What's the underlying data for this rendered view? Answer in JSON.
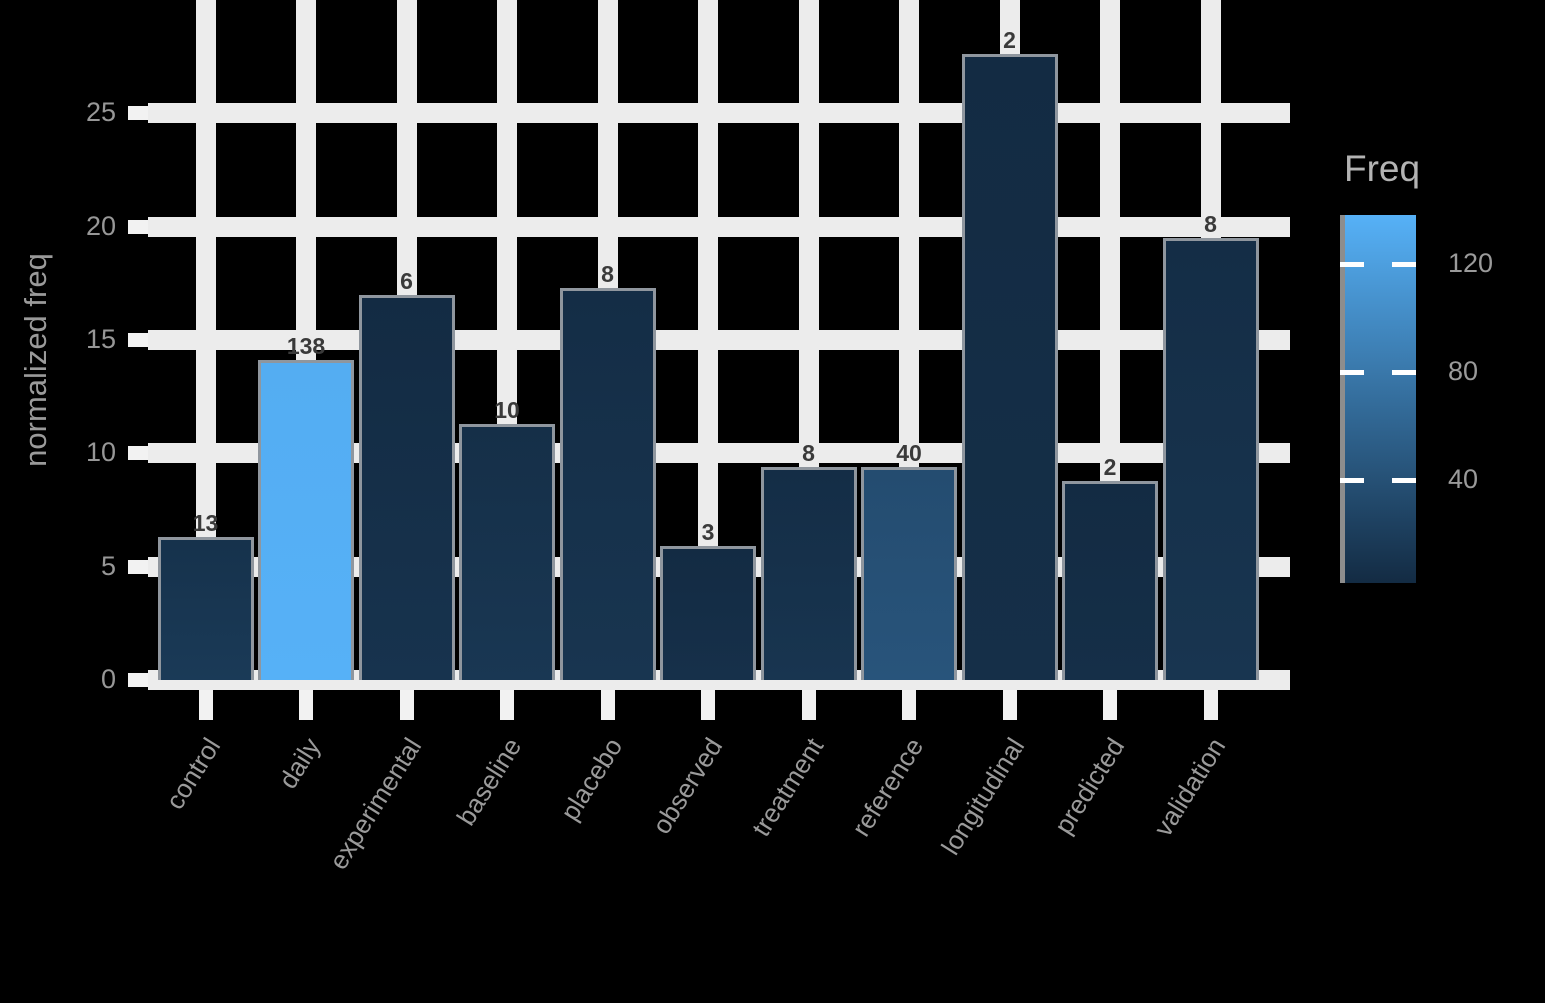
{
  "colors": {
    "background": "#000000",
    "gridline": "#ececec",
    "bar_border": "#8f969e",
    "axis_text": "#9a9a9a",
    "value_label_text": "#3a3a3a",
    "legend_title_text": "#b3b3b3",
    "scale_low": "#132B43",
    "scale_high": "#56B1F7"
  },
  "chart_data": {
    "type": "bar",
    "title": "",
    "xlabel": "",
    "ylabel": "normalized freq",
    "ylim": [
      0,
      30
    ],
    "yticks": [
      0,
      5,
      10,
      15,
      20,
      25
    ],
    "grid": "on",
    "legend_position": "right",
    "legend_title": "Freq",
    "legend_ticks": [
      120,
      80,
      40
    ],
    "color_scale": {
      "low": "#132B43",
      "high": "#56B1F7",
      "domain": [
        2,
        138
      ]
    },
    "categories": [
      "control",
      "daily",
      "experimental",
      "baseline",
      "placebo",
      "observed",
      "treatment",
      "reference",
      "longitudinal",
      "predicted",
      "validation"
    ],
    "series": [
      {
        "name": "normalized freq (bar height)",
        "values": [
          6.3,
          14.1,
          17.0,
          11.3,
          17.3,
          5.9,
          9.4,
          9.4,
          27.6,
          8.8,
          19.5
        ]
      },
      {
        "name": "Freq (fill + data label)",
        "values": [
          13,
          138,
          6,
          10,
          8,
          3,
          8,
          40,
          2,
          2,
          8
        ]
      }
    ]
  }
}
